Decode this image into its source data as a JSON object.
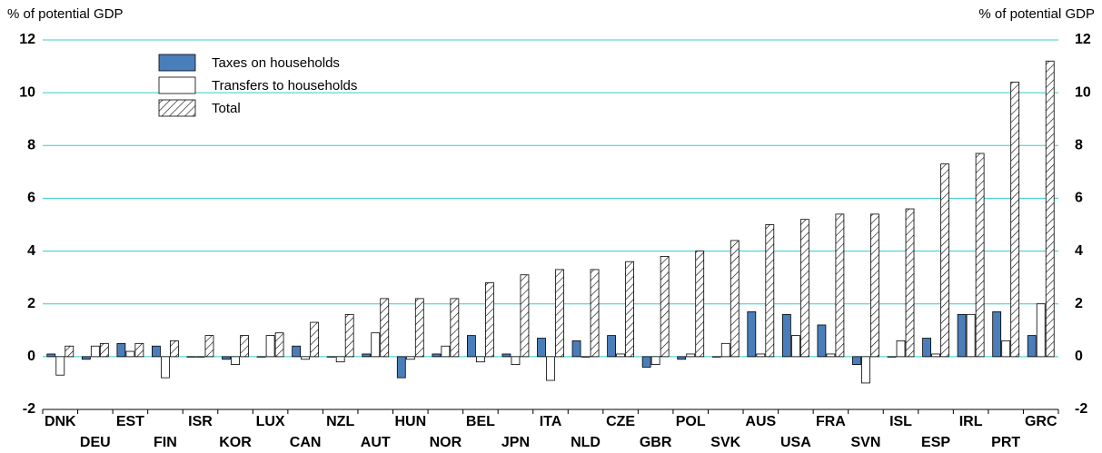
{
  "chart_data": {
    "type": "bar",
    "ylabel": "% of potential GDP",
    "y2label": "% of potential GDP",
    "categories": [
      "DNK",
      "DEU",
      "EST",
      "FIN",
      "ISR",
      "KOR",
      "LUX",
      "CAN",
      "NZL",
      "AUT",
      "HUN",
      "NOR",
      "BEL",
      "JPN",
      "ITA",
      "NLD",
      "CZE",
      "GBR",
      "POL",
      "SVK",
      "AUS",
      "USA",
      "FRA",
      "SVN",
      "ISL",
      "ESP",
      "IRL",
      "PRT",
      "GRC"
    ],
    "series": [
      {
        "name": "Taxes on households",
        "color": "#4a7ebb",
        "values": [
          0.1,
          -0.1,
          0.5,
          0.4,
          0,
          -0.1,
          0,
          0.4,
          0,
          0.1,
          -0.8,
          0.1,
          0.8,
          0.1,
          0.7,
          0.6,
          0.8,
          -0.4,
          -0.1,
          0,
          1.7,
          1.6,
          1.2,
          -0.3,
          0,
          0.7,
          1.6,
          1.7,
          0.8
        ]
      },
      {
        "name": "Transfers to households",
        "color": "#ffffff",
        "values": [
          -0.7,
          0.4,
          0.2,
          -0.8,
          0,
          -0.3,
          0.8,
          -0.1,
          -0.2,
          0.9,
          -0.1,
          0.4,
          -0.2,
          -0.3,
          -0.9,
          0,
          0.1,
          -0.3,
          0.1,
          0.5,
          0.1,
          0.8,
          0.1,
          -1.0,
          0.6,
          0.1,
          1.6,
          0.6,
          2.0
        ]
      },
      {
        "name": "Total",
        "color": "hatch",
        "values": [
          0.4,
          0.5,
          0.5,
          0.6,
          0.8,
          0.8,
          0.9,
          1.3,
          1.6,
          2.2,
          2.2,
          2.2,
          2.8,
          3.1,
          3.3,
          3.3,
          3.6,
          3.8,
          4.0,
          4.4,
          5.0,
          5.2,
          5.4,
          5.4,
          5.6,
          7.3,
          7.7,
          10.4,
          11.2
        ]
      }
    ],
    "ylim": [
      -2,
      12
    ],
    "yticks": [
      -2,
      0,
      2,
      4,
      6,
      8,
      10,
      12
    ],
    "y2lim": [
      -2,
      12
    ],
    "y2ticks": [
      -2,
      0,
      2,
      4,
      6,
      8,
      10,
      12
    ],
    "grid": true,
    "legend": "upper left"
  }
}
